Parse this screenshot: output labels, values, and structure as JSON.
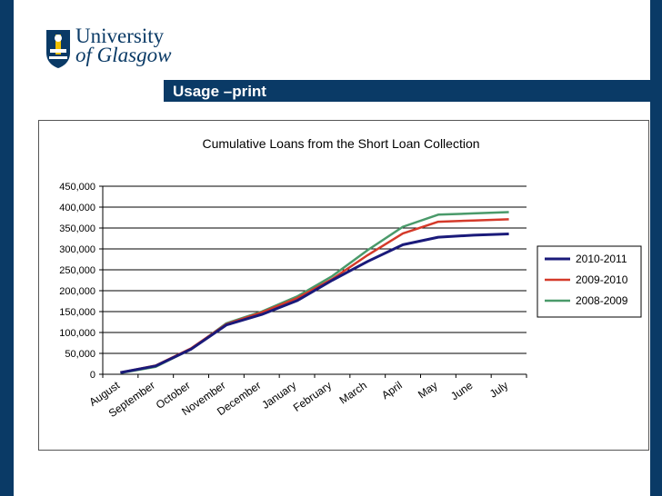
{
  "header": {
    "logo_line1": "University",
    "logo_line2": "of Glasgow",
    "slide_title": "Usage –print"
  },
  "colors": {
    "navy": "#0a3a66",
    "series_2010": "#1a1a7a",
    "series_2009": "#d43a2a",
    "series_2008": "#4a9a6a"
  },
  "icons": {
    "crest": "university-crest-icon"
  },
  "chart_data": {
    "type": "line",
    "title": "Cumulative Loans from the Short Loan Collection",
    "xlabel": "",
    "ylabel": "",
    "ylim": [
      0,
      450000
    ],
    "yticks": [
      "0",
      "50,000",
      "100,000",
      "150,000",
      "200,000",
      "250,000",
      "300,000",
      "350,000",
      "400,000",
      "450,000"
    ],
    "ytick_values": [
      0,
      50000,
      100000,
      150000,
      200000,
      250000,
      300000,
      350000,
      400000,
      450000
    ],
    "categories": [
      "August",
      "September",
      "October",
      "November",
      "December",
      "January",
      "February",
      "March",
      "April",
      "May",
      "June",
      "July"
    ],
    "grid": true,
    "legend": "right",
    "series": [
      {
        "name": "2010-2011",
        "values": [
          4000,
          20000,
          60000,
          118000,
          143000,
          176000,
          225000,
          270000,
          310000,
          328000,
          333000,
          336000
        ]
      },
      {
        "name": "2009-2010",
        "values": [
          4000,
          21000,
          62000,
          120000,
          148000,
          182000,
          228000,
          285000,
          337000,
          365000,
          368000,
          371000
        ]
      },
      {
        "name": "2008-2009",
        "values": [
          3000,
          18000,
          60000,
          122000,
          150000,
          186000,
          235000,
          297000,
          353000,
          382000,
          385000,
          388000
        ]
      }
    ]
  }
}
